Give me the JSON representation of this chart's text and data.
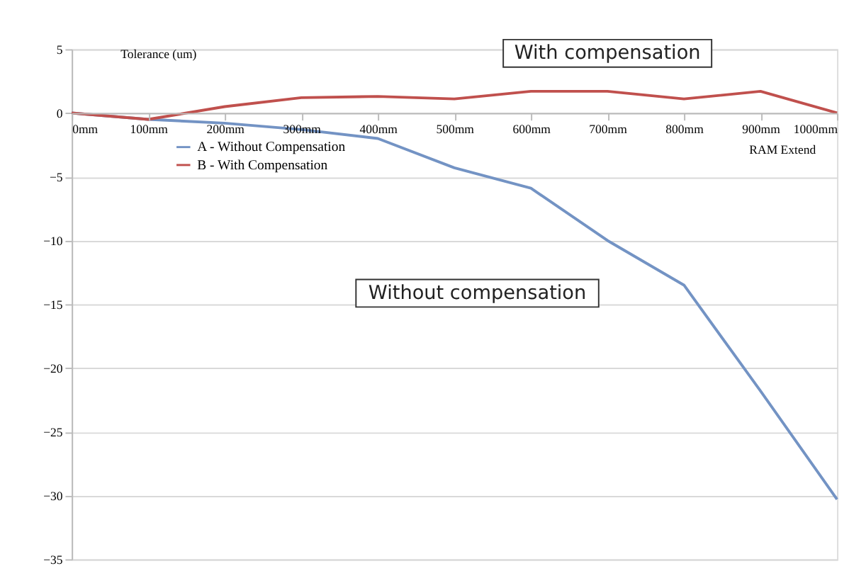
{
  "chart_data": {
    "type": "line",
    "ylabel": "Tolerance (um)",
    "xlabel": "RAM Extend",
    "categories": [
      "0mm",
      "100mm",
      "200mm",
      "300mm",
      "400mm",
      "500mm",
      "600mm",
      "700mm",
      "800mm",
      "900mm",
      "1000mm"
    ],
    "series": [
      {
        "name": "A - Without Compensation",
        "color": "#7393c4",
        "values": [
          0,
          -0.5,
          -0.8,
          -1.3,
          -2,
          -4.3,
          -5.9,
          -10,
          -13.5,
          -21.8,
          -30.3
        ]
      },
      {
        "name": "B - With Compensation",
        "color": "#c0504d",
        "values": [
          0,
          -0.5,
          0.5,
          1.2,
          1.3,
          1.1,
          1.7,
          1.7,
          1.1,
          1.7,
          0
        ]
      }
    ],
    "ylim": [
      -35,
      5
    ],
    "yticks": [
      5,
      0,
      -5,
      -10,
      -15,
      -20,
      -25,
      -30,
      -35
    ],
    "grid": "y",
    "legend": "top left",
    "marker": "none",
    "line_style": "solid",
    "annotations": [
      "With compensation",
      "Without compensation"
    ]
  }
}
